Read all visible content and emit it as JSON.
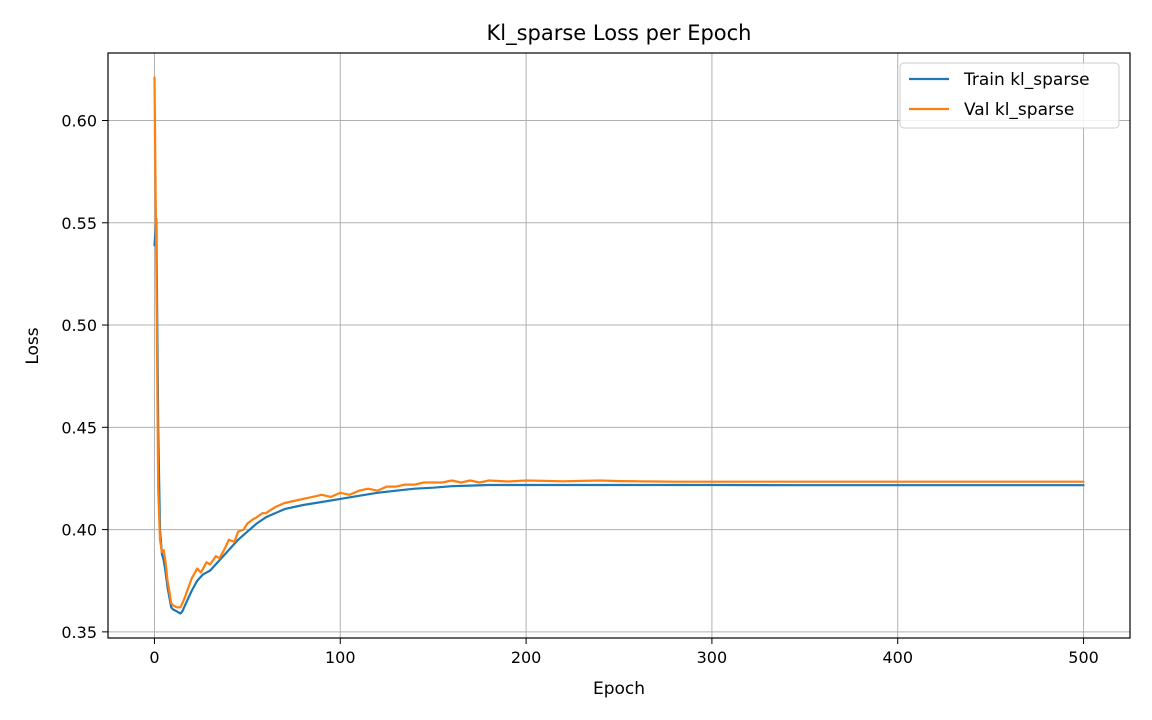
{
  "chart_data": {
    "type": "line",
    "title": "Kl_sparse Loss per Epoch",
    "xlabel": "Epoch",
    "ylabel": "Loss",
    "xlim": [
      -25,
      525
    ],
    "ylim": [
      0.347,
      0.633
    ],
    "xticks": [
      0,
      100,
      200,
      300,
      400,
      500
    ],
    "xtick_labels": [
      "0",
      "100",
      "200",
      "300",
      "400",
      "500"
    ],
    "yticks": [
      0.35,
      0.4,
      0.45,
      0.5,
      0.55,
      0.6
    ],
    "ytick_labels": [
      "0.35",
      "0.40",
      "0.45",
      "0.50",
      "0.55",
      "0.60"
    ],
    "grid": true,
    "legend_position": "top-right",
    "series": [
      {
        "name": "Train kl_sparse",
        "color": "#1f77b4",
        "x": [
          0,
          1,
          2,
          3,
          4,
          5,
          6,
          7,
          8,
          9,
          10,
          12,
          14,
          15,
          17,
          20,
          23,
          26,
          30,
          35,
          40,
          45,
          50,
          55,
          60,
          70,
          80,
          90,
          100,
          110,
          120,
          130,
          140,
          150,
          160,
          170,
          180,
          200,
          250,
          300,
          350,
          400,
          450,
          500
        ],
        "y": [
          0.539,
          0.552,
          0.45,
          0.4,
          0.388,
          0.385,
          0.379,
          0.372,
          0.367,
          0.362,
          0.361,
          0.36,
          0.359,
          0.36,
          0.364,
          0.37,
          0.375,
          0.378,
          0.38,
          0.385,
          0.39,
          0.395,
          0.399,
          0.403,
          0.406,
          0.41,
          0.412,
          0.4135,
          0.415,
          0.4165,
          0.418,
          0.419,
          0.42,
          0.4205,
          0.4212,
          0.4215,
          0.4218,
          0.4218,
          0.4218,
          0.4218,
          0.4217,
          0.4217,
          0.4217,
          0.4217
        ]
      },
      {
        "name": "Val kl_sparse",
        "color": "#ff7f0e",
        "x": [
          0,
          1,
          2,
          3,
          4,
          5,
          6,
          7,
          8,
          9,
          10,
          12,
          14,
          16,
          18,
          20,
          23,
          25,
          28,
          30,
          33,
          35,
          38,
          40,
          43,
          45,
          48,
          50,
          53,
          55,
          58,
          60,
          65,
          70,
          75,
          80,
          85,
          90,
          95,
          100,
          105,
          110,
          115,
          120,
          125,
          130,
          135,
          140,
          145,
          150,
          155,
          160,
          165,
          170,
          175,
          180,
          190,
          200,
          210,
          220,
          230,
          240,
          250,
          260,
          270,
          280,
          290,
          300,
          350,
          400,
          450,
          500
        ],
        "y": [
          0.621,
          0.53,
          0.42,
          0.395,
          0.389,
          0.39,
          0.384,
          0.375,
          0.37,
          0.364,
          0.363,
          0.362,
          0.362,
          0.366,
          0.371,
          0.376,
          0.381,
          0.379,
          0.384,
          0.383,
          0.387,
          0.386,
          0.391,
          0.395,
          0.394,
          0.399,
          0.4,
          0.403,
          0.405,
          0.406,
          0.408,
          0.408,
          0.411,
          0.413,
          0.414,
          0.415,
          0.416,
          0.417,
          0.416,
          0.418,
          0.417,
          0.419,
          0.42,
          0.419,
          0.421,
          0.421,
          0.422,
          0.422,
          0.423,
          0.423,
          0.423,
          0.424,
          0.423,
          0.424,
          0.423,
          0.424,
          0.4235,
          0.424,
          0.4238,
          0.4236,
          0.4238,
          0.424,
          0.4237,
          0.4236,
          0.4235,
          0.4234,
          0.4234,
          0.4234,
          0.4234,
          0.4234,
          0.4234,
          0.4234
        ]
      }
    ]
  }
}
